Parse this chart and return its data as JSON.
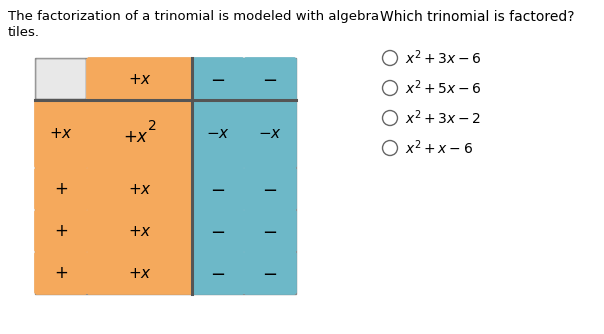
{
  "title_left_line1": "The factorization of a trinomial is modeled with algebra",
  "title_left_line2": "tiles.",
  "title_right": "Which trinomial is factored?",
  "options": [
    "x² + 3x – 6",
    "x² + 5x – 6",
    "x² + 3x – 2",
    "x² + x – 6"
  ],
  "orange_color": "#F5A95C",
  "blue_color": "#6DB8C8",
  "light_gray": "#E8E8E8",
  "grid_bg": "#D8D8D8",
  "separator_color": "#555555"
}
